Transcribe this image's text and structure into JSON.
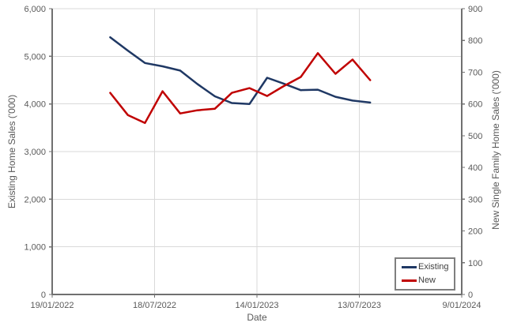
{
  "chart_data": {
    "type": "line",
    "title": "",
    "xlabel": "Date",
    "ylabel_left": "Existing Home Sales ('000)",
    "ylabel_right": "New Single Family Home Sales ('000)",
    "grid": true,
    "legend_position": "inside-bottom-right",
    "x_axis": {
      "range_days": [
        0,
        720
      ],
      "tick_days": [
        0,
        180,
        360,
        540,
        720
      ],
      "tick_labels": [
        "19/01/2022",
        "18/07/2022",
        "14/01/2023",
        "13/07/2023",
        "9/01/2024"
      ]
    },
    "y_left": {
      "min": 0,
      "max": 6000,
      "step": 1000,
      "tick_labels": [
        "0",
        "1,000",
        "2,000",
        "3,000",
        "4,000",
        "5,000",
        "6,000"
      ]
    },
    "y_right": {
      "min": 0,
      "max": 900,
      "step": 100,
      "tick_labels": [
        "0",
        "100",
        "200",
        "300",
        "400",
        "500",
        "600",
        "700",
        "800",
        "900"
      ]
    },
    "series": [
      {
        "name": "Existing",
        "axis": "left",
        "color": "#1F3864",
        "x_days": [
          102,
          133,
          163,
          194,
          225,
          255,
          286,
          316,
          347,
          378,
          406,
          437,
          467,
          498,
          528,
          559
        ],
        "values": [
          5400,
          5120,
          4860,
          4790,
          4700,
          4420,
          4160,
          4020,
          4000,
          4550,
          4430,
          4290,
          4300,
          4150,
          4070,
          4030
        ]
      },
      {
        "name": "New",
        "axis": "right",
        "color": "#C00000",
        "x_days": [
          102,
          133,
          163,
          194,
          225,
          255,
          286,
          316,
          347,
          378,
          406,
          437,
          467,
          498,
          528,
          559
        ],
        "values": [
          635,
          565,
          540,
          640,
          570,
          580,
          585,
          635,
          650,
          625,
          655,
          685,
          760,
          695,
          740,
          675
        ]
      }
    ]
  },
  "colors": {
    "background": "#ffffff",
    "gridline": "#D9D9D9",
    "spine": "#707070",
    "tick": "#707070",
    "tick_label": "#595959",
    "axis_title": "#595959",
    "legend_border": "#7F7F7F",
    "legend_text": "#404040",
    "series_existing": "#1F3864",
    "series_new": "#C00000"
  }
}
